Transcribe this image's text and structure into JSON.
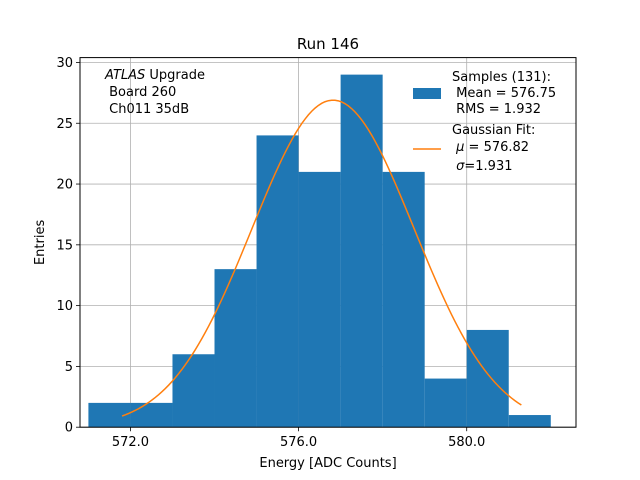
{
  "chart_data": {
    "type": "bar",
    "title": "Run 146",
    "xlabel": "Energy [ADC Counts]",
    "ylabel": "Entries",
    "xlim": [
      570.8,
      582.6
    ],
    "ylim": [
      0,
      30.4
    ],
    "xticks": [
      572,
      576,
      580
    ],
    "xtick_labels": [
      "572.0",
      "576.0",
      "580.0"
    ],
    "yticks": [
      0,
      5,
      10,
      15,
      20,
      25,
      30
    ],
    "ytick_labels": [
      "0",
      "5",
      "10",
      "15",
      "20",
      "25",
      "30"
    ],
    "grid": true,
    "histogram": {
      "bin_edges": [
        571,
        572,
        573,
        574,
        575,
        576,
        577,
        578,
        579,
        580,
        581,
        582
      ],
      "counts": [
        2,
        2,
        6,
        13,
        24,
        21,
        29,
        21,
        4,
        8,
        1
      ],
      "color": "#1f77b4"
    },
    "gaussian_fit": {
      "mu": 576.82,
      "sigma": 1.931,
      "amplitude": 26.9,
      "x_range": [
        571.8,
        581.3
      ],
      "color": "#ff7f0e"
    },
    "annotation": {
      "experiment": "ATLAS",
      "rest_line1": " Upgrade",
      "line2": " Board 260",
      "line3": " Ch011 35dB"
    },
    "legend": {
      "placement": "top-right",
      "samples_line1": "Samples (131):",
      "samples_line2": " Mean = 576.75",
      "samples_line3": " RMS = 1.932",
      "fit_line1": "Gaussian Fit:",
      "fit_mu_symbol": "μ",
      "fit_mu_rest": " = 576.82",
      "fit_sigma_symbol": "σ",
      "fit_sigma_rest": "=1.931"
    }
  }
}
